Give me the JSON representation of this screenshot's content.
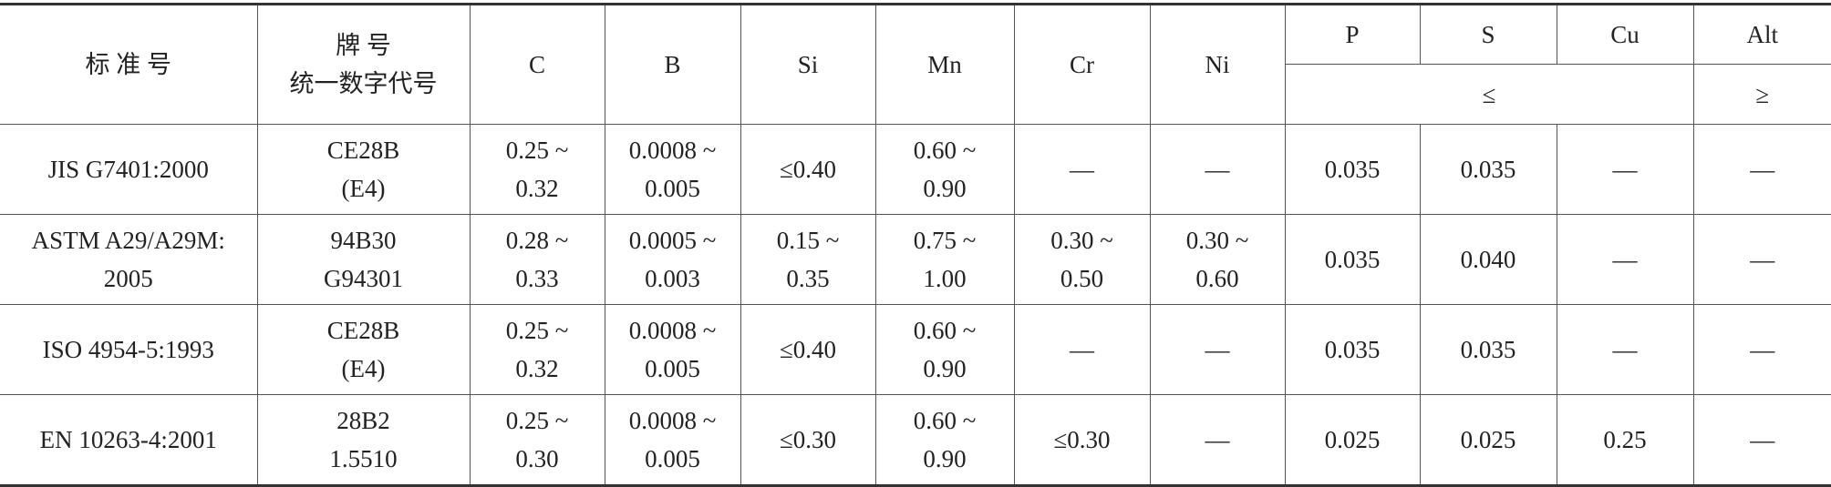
{
  "table": {
    "header": {
      "columns": [
        [
          "标 准 号"
        ],
        [
          "牌 号",
          "统一数字代号"
        ],
        [
          "C"
        ],
        [
          "B"
        ],
        [
          "Si"
        ],
        [
          "Mn"
        ],
        [
          "Cr"
        ],
        [
          "Ni"
        ]
      ],
      "limited": [
        "P",
        "S",
        "Cu",
        "Alt"
      ],
      "max_label": "≤",
      "min_label": "≥"
    },
    "rows": [
      [
        [
          "JIS G7401:2000"
        ],
        [
          "CE28B",
          "(E4)"
        ],
        [
          "0.25 ~",
          "0.32"
        ],
        [
          "0.0008 ~",
          "0.005"
        ],
        [
          "≤0.40"
        ],
        [
          "0.60 ~",
          "0.90"
        ],
        [
          "—"
        ],
        [
          "—"
        ],
        [
          "0.035"
        ],
        [
          "0.035"
        ],
        [
          "—"
        ],
        [
          "—"
        ]
      ],
      [
        [
          "ASTM A29/A29M:",
          "2005"
        ],
        [
          "94B30",
          "G94301"
        ],
        [
          "0.28 ~",
          "0.33"
        ],
        [
          "0.0005 ~",
          "0.003"
        ],
        [
          "0.15 ~",
          "0.35"
        ],
        [
          "0.75 ~",
          "1.00"
        ],
        [
          "0.30 ~",
          "0.50"
        ],
        [
          "0.30 ~",
          "0.60"
        ],
        [
          "0.035"
        ],
        [
          "0.040"
        ],
        [
          "—"
        ],
        [
          "—"
        ]
      ],
      [
        [
          "ISO 4954-5:1993"
        ],
        [
          "CE28B",
          "(E4)"
        ],
        [
          "0.25 ~",
          "0.32"
        ],
        [
          "0.0008 ~",
          "0.005"
        ],
        [
          "≤0.40"
        ],
        [
          "0.60 ~",
          "0.90"
        ],
        [
          "—"
        ],
        [
          "—"
        ],
        [
          "0.035"
        ],
        [
          "0.035"
        ],
        [
          "—"
        ],
        [
          "—"
        ]
      ],
      [
        [
          "EN 10263-4:2001"
        ],
        [
          "28B2",
          "1.5510"
        ],
        [
          "0.25 ~",
          "0.30"
        ],
        [
          "0.0008 ~",
          "0.005"
        ],
        [
          "≤0.30"
        ],
        [
          "0.60 ~",
          "0.90"
        ],
        [
          "≤0.30"
        ],
        [
          "—"
        ],
        [
          "0.025"
        ],
        [
          "0.025"
        ],
        [
          "0.25"
        ],
        [
          "—"
        ]
      ]
    ]
  }
}
